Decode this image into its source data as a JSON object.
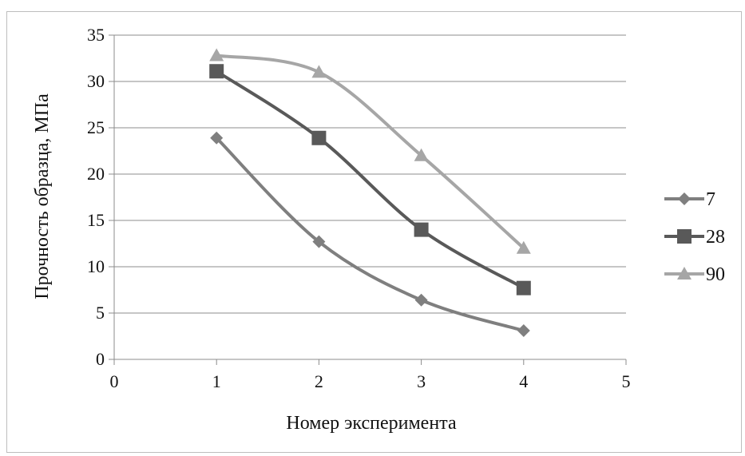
{
  "chart_data": {
    "type": "scatter",
    "title": "",
    "xlabel": "Номер эксперимента",
    "ylabel": "Прочность образца, МПа",
    "xlim": [
      0,
      5
    ],
    "ylim": [
      0,
      35
    ],
    "x_ticks": [
      "0",
      "1",
      "2",
      "3",
      "4",
      "5"
    ],
    "y_ticks": [
      "0",
      "5",
      "10",
      "15",
      "20",
      "25",
      "30",
      "35"
    ],
    "grid": "horizontal",
    "smoothed_lines": true,
    "legend_position": "right",
    "series": [
      {
        "name": "7",
        "marker": "diamond",
        "color": "#7f7f7f",
        "x": [
          1,
          2,
          3,
          4
        ],
        "y": [
          23.9,
          12.7,
          6.4,
          3.1
        ]
      },
      {
        "name": "28",
        "marker": "square",
        "color": "#595959",
        "x": [
          1,
          2,
          3,
          4
        ],
        "y": [
          31.1,
          23.9,
          14.0,
          7.7
        ]
      },
      {
        "name": "90",
        "marker": "triangle",
        "color": "#a6a6a6",
        "x": [
          1,
          2,
          3,
          4
        ],
        "y": [
          32.8,
          31.0,
          22.0,
          12.0
        ]
      }
    ]
  }
}
